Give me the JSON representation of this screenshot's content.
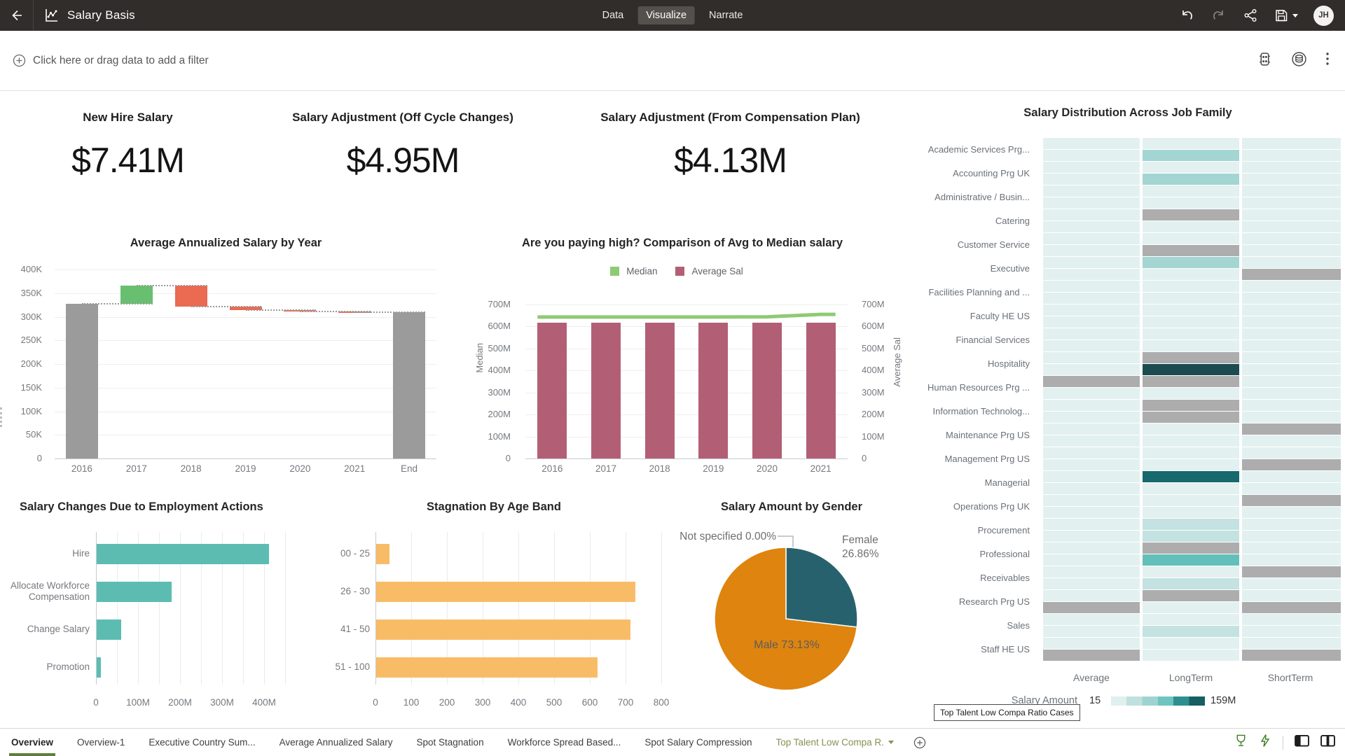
{
  "topbar": {
    "title": "Salary Basis",
    "tabs": [
      {
        "label": "Data"
      },
      {
        "label": "Visualize",
        "active": true
      },
      {
        "label": "Narrate"
      }
    ],
    "avatar": "JH"
  },
  "filterbar": {
    "placeholder": "Click here or drag data to add a filter"
  },
  "kpis": [
    {
      "title": "New Hire Salary",
      "value": "$7.41M"
    },
    {
      "title": "Salary Adjustment (Off Cycle Changes)",
      "value": "$4.95M"
    },
    {
      "title": "Salary Adjustment (From Compensation Plan)",
      "value": "$4.13M"
    }
  ],
  "chart_data": [
    {
      "id": "waterfall",
      "type": "bar",
      "subtype": "waterfall",
      "title": "Average Annualized Salary by Year",
      "categories": [
        "2016",
        "2017",
        "2018",
        "2019",
        "2020",
        "2021",
        "End"
      ],
      "steps": [
        {
          "label": "2016",
          "from": 0,
          "to": 328000,
          "kind": "total"
        },
        {
          "label": "2017",
          "from": 328000,
          "to": 366000,
          "kind": "increase"
        },
        {
          "label": "2018",
          "from": 366000,
          "to": 322000,
          "kind": "decrease"
        },
        {
          "label": "2019",
          "from": 322000,
          "to": 314000,
          "kind": "decrease"
        },
        {
          "label": "2020",
          "from": 314000,
          "to": 311000,
          "kind": "decrease"
        },
        {
          "label": "2021",
          "from": 311000,
          "to": 309000,
          "kind": "decrease"
        },
        {
          "label": "End",
          "from": 0,
          "to": 309000,
          "kind": "total"
        }
      ],
      "ymax": 400000,
      "y_ticks": [
        "400K",
        "350K",
        "300K",
        "250K",
        "200K",
        "150K",
        "100K",
        "50K",
        "0"
      ],
      "colors": {
        "total": "#9b9b9b",
        "increase": "#69bf70",
        "decrease": "#ea6a52"
      },
      "grid": true
    },
    {
      "id": "combo",
      "type": "line",
      "subtype": "bar+line dual axis",
      "title": "Are you paying high? Comparison of Avg to Median salary",
      "categories": [
        "2016",
        "2017",
        "2018",
        "2019",
        "2020",
        "2021"
      ],
      "series": [
        {
          "name": "Median",
          "type": "line",
          "color": "#8fca74",
          "values": [
            643,
            643,
            643,
            643,
            644,
            655
          ]
        },
        {
          "name": "Average Sal",
          "type": "bar",
          "color": "#b25f76",
          "values": [
            618,
            618,
            618,
            617,
            617,
            618
          ]
        }
      ],
      "unit": "M",
      "ymax": 700,
      "y_ticks": [
        "700M",
        "600M",
        "500M",
        "400M",
        "300M",
        "200M",
        "100M",
        "0"
      ],
      "left_axis_label": "Median",
      "right_axis_label": "Average Sal",
      "legend_position": "top"
    },
    {
      "id": "employment-actions",
      "type": "bar",
      "subtype": "horizontal",
      "title": "Salary Changes Due to Employment Actions",
      "categories": [
        "Hire",
        "Allocate Workforce Compensation",
        "Change Salary",
        "Promotion"
      ],
      "values": [
        410,
        178,
        58,
        10
      ],
      "unit": "M",
      "xmax": 450,
      "x_ticks": [
        "0",
        "100M",
        "200M",
        "300M",
        "400M"
      ],
      "color": "#5cbcb2"
    },
    {
      "id": "stagnation-age-band",
      "type": "bar",
      "subtype": "horizontal",
      "title": "Stagnation By Age Band",
      "categories": [
        "00 - 25",
        "26 - 30",
        "41 - 50",
        "51 - 100"
      ],
      "values": [
        38,
        725,
        712,
        620
      ],
      "xmax": 800,
      "x_ticks": [
        "0",
        "100",
        "200",
        "300",
        "400",
        "500",
        "600",
        "700",
        "800"
      ],
      "color": "#f8bc67"
    },
    {
      "id": "salary-by-gender",
      "type": "pie",
      "title": "Salary Amount by Gender",
      "slices": [
        {
          "label": "Female",
          "pct": 26.86,
          "color": "#28616e"
        },
        {
          "label": "Male",
          "pct": 73.13,
          "color": "#de840f"
        },
        {
          "label": "Not specified",
          "pct": 0.0,
          "color": "#9e9e9e"
        }
      ],
      "callouts": {
        "not_specified": "Not specified 0.00%",
        "female_line1": "Female",
        "female_line2": "26.86%",
        "male": "Male 73.13%"
      }
    },
    {
      "id": "salary-distribution-heatmap",
      "type": "heatmap",
      "title": "Salary Distribution Across Job Family",
      "columns": [
        "Average",
        "LongTerm",
        "ShortTerm"
      ],
      "legend": {
        "label": "Salary Amount",
        "min": "15",
        "max": "159M"
      },
      "palette": {
        "l": "#e2f1f0",
        "m1": "#c3e2e1",
        "m2": "#a3d5d3",
        "m3": "#63bfb9",
        "g": "#adadad",
        "d1": "#1c4b50",
        "d2": "#17696e"
      },
      "rows": [
        {
          "label": "Academic Services Prg...",
          "a": [
            "l",
            "l",
            "l"
          ],
          "b": [
            "l",
            "m2",
            "l"
          ]
        },
        {
          "label": "Accounting Prg UK",
          "a": [
            "l",
            "l",
            "l"
          ],
          "b": [
            "l",
            "m2",
            "l"
          ]
        },
        {
          "label": "Administrative / Busin...",
          "a": [
            "l",
            "l",
            "l"
          ],
          "b": [
            "l",
            "l",
            "l"
          ]
        },
        {
          "label": "Catering",
          "a": [
            "l",
            "g",
            "l"
          ],
          "b": [
            "l",
            "l",
            "l"
          ]
        },
        {
          "label": "Customer Service",
          "a": [
            "l",
            "l",
            "l"
          ],
          "b": [
            "l",
            "g",
            "l"
          ]
        },
        {
          "label": "Executive",
          "a": [
            "l",
            "m2",
            "l"
          ],
          "b": [
            "l",
            "l",
            "g"
          ]
        },
        {
          "label": "Facilities Planning and ...",
          "a": [
            "l",
            "l",
            "l"
          ],
          "b": [
            "l",
            "l",
            "l"
          ]
        },
        {
          "label": "Faculty HE US",
          "a": [
            "l",
            "l",
            "l"
          ],
          "b": [
            "l",
            "l",
            "l"
          ]
        },
        {
          "label": "Financial Services",
          "a": [
            "l",
            "l",
            "l"
          ],
          "b": [
            "l",
            "l",
            "l"
          ]
        },
        {
          "label": "Hospitality",
          "a": [
            "l",
            "g",
            "l"
          ],
          "b": [
            "l",
            "d1",
            "l"
          ]
        },
        {
          "label": "Human Resources Prg ...",
          "a": [
            "g",
            "g",
            "l"
          ],
          "b": [
            "l",
            "l",
            "l"
          ]
        },
        {
          "label": "Information Technolog...",
          "a": [
            "l",
            "g",
            "l"
          ],
          "b": [
            "l",
            "g",
            "l"
          ]
        },
        {
          "label": "Maintenance Prg US",
          "a": [
            "l",
            "l",
            "g"
          ],
          "b": [
            "l",
            "l",
            "l"
          ]
        },
        {
          "label": "Management Prg US",
          "a": [
            "l",
            "l",
            "l"
          ],
          "b": [
            "l",
            "l",
            "g"
          ]
        },
        {
          "label": "Managerial",
          "a": [
            "l",
            "d2",
            "l"
          ],
          "b": [
            "l",
            "l",
            "l"
          ]
        },
        {
          "label": "Operations Prg UK",
          "a": [
            "l",
            "l",
            "g"
          ],
          "b": [
            "l",
            "l",
            "l"
          ]
        },
        {
          "label": "Procurement",
          "a": [
            "l",
            "m1",
            "l"
          ],
          "b": [
            "l",
            "m1",
            "l"
          ]
        },
        {
          "label": "Professional",
          "a": [
            "l",
            "g",
            "l"
          ],
          "b": [
            "l",
            "m3",
            "l"
          ]
        },
        {
          "label": "Receivables",
          "a": [
            "l",
            "l",
            "g"
          ],
          "b": [
            "l",
            "m1",
            "l"
          ]
        },
        {
          "label": "Research Prg US",
          "a": [
            "l",
            "g",
            "l"
          ],
          "b": [
            "g",
            "l",
            "g"
          ]
        },
        {
          "label": "Sales",
          "a": [
            "l",
            "l",
            "l"
          ],
          "b": [
            "l",
            "m1",
            "l"
          ]
        },
        {
          "label": "Staff HE US",
          "a": [
            "l",
            "l",
            "l"
          ],
          "b": [
            "g",
            "l",
            "g"
          ]
        }
      ]
    }
  ],
  "footer": {
    "tabs": [
      {
        "label": "Overview",
        "active": true
      },
      {
        "label": "Overview-1"
      },
      {
        "label": "Executive Country Sum..."
      },
      {
        "label": "Average Annualized Salary"
      },
      {
        "label": "Spot Stagnation"
      },
      {
        "label": "Workforce Spread Based..."
      },
      {
        "label": "Spot Salary Compression"
      },
      {
        "label": "Top Talent Low Compa R.",
        "highlighted": true,
        "has_caret": true
      }
    ],
    "tooltip": "Top Talent Low Compa Ratio Cases"
  }
}
